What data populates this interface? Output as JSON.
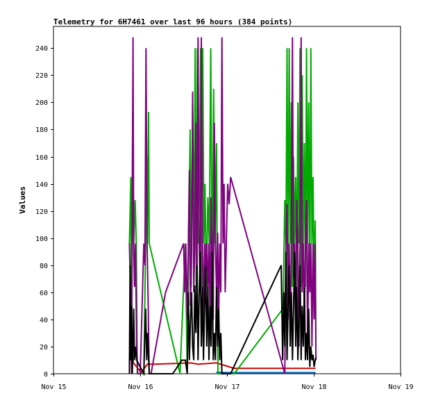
{
  "chart_data": {
    "type": "line",
    "title": "Telemetry for 6H7461 over last 96 hours (384 points)",
    "xlabel": "",
    "ylabel": "Values",
    "x_ticks": [
      "Nov 15",
      "Nov 16",
      "Nov 17",
      "Nov 18",
      "Nov 19"
    ],
    "x_tick_hours": [
      0,
      24,
      48,
      72,
      96
    ],
    "xlim_hours": [
      0,
      96
    ],
    "y_ticks": [
      0,
      20,
      40,
      60,
      80,
      100,
      120,
      140,
      160,
      180,
      200,
      220,
      240
    ],
    "ylim": [
      0,
      256
    ],
    "grid": false,
    "series": [
      {
        "color": "#0066b3",
        "points": [
          [
            45,
            1
          ],
          [
            50,
            0.8
          ],
          [
            60,
            0.8
          ],
          [
            64.5,
            0.8
          ],
          [
            70,
            0.8
          ],
          [
            72.5,
            0.8
          ]
        ]
      },
      {
        "color": "#cc0000",
        "points": [
          [
            21.0,
            8
          ],
          [
            21.7,
            24
          ],
          [
            22.1,
            8
          ],
          [
            24.3,
            1
          ],
          [
            26.0,
            7
          ],
          [
            28.0,
            7
          ],
          [
            38.0,
            8
          ],
          [
            40.0,
            7
          ],
          [
            45.0,
            8
          ],
          [
            50.0,
            4
          ],
          [
            60.0,
            4
          ],
          [
            64.0,
            4
          ],
          [
            70.0,
            4
          ],
          [
            72.5,
            4
          ]
        ]
      },
      {
        "color": "#00aa00",
        "points": [
          [
            21.0,
            96
          ],
          [
            21.4,
            145
          ],
          [
            21.6,
            0
          ],
          [
            21.9,
            193
          ],
          [
            22.2,
            96
          ],
          [
            22.6,
            128
          ],
          [
            22.9,
            96
          ],
          [
            23.2,
            0
          ],
          [
            25.0,
            0
          ],
          [
            25.5,
            96
          ],
          [
            25.8,
            160
          ],
          [
            26.0,
            96
          ],
          [
            26.3,
            193
          ],
          [
            26.5,
            96
          ],
          [
            35.0,
            0
          ],
          [
            36.5,
            96
          ],
          [
            37.0,
            0
          ],
          [
            37.8,
            180
          ],
          [
            38.1,
            64
          ],
          [
            38.5,
            200
          ],
          [
            38.9,
            96
          ],
          [
            39.2,
            240
          ],
          [
            39.5,
            64
          ],
          [
            39.8,
            240
          ],
          [
            40.1,
            96
          ],
          [
            40.4,
            140
          ],
          [
            40.7,
            240
          ],
          [
            41.0,
            64
          ],
          [
            41.3,
            240
          ],
          [
            41.6,
            96
          ],
          [
            41.9,
            140
          ],
          [
            42.3,
            64
          ],
          [
            42.7,
            130
          ],
          [
            43.1,
            96
          ],
          [
            43.5,
            240
          ],
          [
            43.9,
            64
          ],
          [
            44.3,
            210
          ],
          [
            44.7,
            96
          ],
          [
            45.1,
            170
          ],
          [
            45.5,
            0
          ],
          [
            50.0,
            0
          ],
          [
            63.5,
            48
          ],
          [
            64.0,
            128
          ],
          [
            64.3,
            96
          ],
          [
            64.6,
            240
          ],
          [
            64.9,
            64
          ],
          [
            65.2,
            240
          ],
          [
            65.5,
            96
          ],
          [
            65.8,
            200
          ],
          [
            66.1,
            64
          ],
          [
            66.4,
            160
          ],
          [
            66.7,
            96
          ],
          [
            67.0,
            145
          ],
          [
            67.3,
            64
          ],
          [
            67.6,
            200
          ],
          [
            67.9,
            96
          ],
          [
            68.2,
            240
          ],
          [
            68.5,
            64
          ],
          [
            68.8,
            220
          ],
          [
            69.1,
            96
          ],
          [
            69.4,
            170
          ],
          [
            69.7,
            64
          ],
          [
            70.0,
            240
          ],
          [
            70.3,
            96
          ],
          [
            70.6,
            200
          ],
          [
            70.9,
            64
          ],
          [
            71.2,
            240
          ],
          [
            71.5,
            96
          ],
          [
            71.8,
            145
          ],
          [
            72.1,
            64
          ],
          [
            72.4,
            113
          ],
          [
            72.6,
            10
          ]
        ]
      },
      {
        "color": "#800080",
        "points": [
          [
            21.0,
            96
          ],
          [
            21.3,
            64
          ],
          [
            21.6,
            0
          ],
          [
            22.0,
            248
          ],
          [
            22.2,
            96
          ],
          [
            22.4,
            64
          ],
          [
            22.7,
            96
          ],
          [
            23.0,
            20
          ],
          [
            23.3,
            0
          ],
          [
            24.0,
            0
          ],
          [
            25.0,
            96
          ],
          [
            25.3,
            80
          ],
          [
            25.6,
            240
          ],
          [
            25.9,
            96
          ],
          [
            26.2,
            50
          ],
          [
            26.5,
            0
          ],
          [
            27.0,
            0
          ],
          [
            31.0,
            60
          ],
          [
            36.0,
            96
          ],
          [
            36.3,
            60
          ],
          [
            36.6,
            96
          ],
          [
            37.0,
            40
          ],
          [
            37.3,
            96
          ],
          [
            37.6,
            150
          ],
          [
            37.9,
            50
          ],
          [
            38.2,
            90
          ],
          [
            38.5,
            208
          ],
          [
            38.8,
            60
          ],
          [
            39.1,
            96
          ],
          [
            39.4,
            185
          ],
          [
            39.7,
            50
          ],
          [
            40.0,
            248
          ],
          [
            40.3,
            96
          ],
          [
            40.6,
            60
          ],
          [
            40.9,
            248
          ],
          [
            41.2,
            96
          ],
          [
            41.5,
            40
          ],
          [
            41.8,
            96
          ],
          [
            42.1,
            72
          ],
          [
            42.4,
            96
          ],
          [
            42.7,
            60
          ],
          [
            43.0,
            96
          ],
          [
            43.3,
            40
          ],
          [
            43.6,
            130
          ],
          [
            43.9,
            96
          ],
          [
            44.2,
            40
          ],
          [
            44.5,
            185
          ],
          [
            44.8,
            96
          ],
          [
            45.1,
            60
          ],
          [
            45.4,
            104
          ],
          [
            45.7,
            40
          ],
          [
            46.0,
            96
          ],
          [
            46.3,
            60
          ],
          [
            46.6,
            248
          ],
          [
            46.9,
            96
          ],
          [
            47.2,
            140
          ],
          [
            47.5,
            60
          ],
          [
            47.8,
            96
          ],
          [
            48.2,
            140
          ],
          [
            48.6,
            125
          ],
          [
            49.0,
            145
          ],
          [
            64.0,
            0
          ],
          [
            64.3,
            96
          ],
          [
            64.6,
            125
          ],
          [
            64.9,
            40
          ],
          [
            65.2,
            96
          ],
          [
            65.5,
            20
          ],
          [
            65.8,
            96
          ],
          [
            66.1,
            248
          ],
          [
            66.4,
            70
          ],
          [
            66.7,
            96
          ],
          [
            67.0,
            40
          ],
          [
            67.3,
            128
          ],
          [
            67.6,
            96
          ],
          [
            67.9,
            20
          ],
          [
            68.2,
            96
          ],
          [
            68.5,
            248
          ],
          [
            68.8,
            60
          ],
          [
            69.1,
            96
          ],
          [
            69.4,
            40
          ],
          [
            69.7,
            96
          ],
          [
            70.0,
            128
          ],
          [
            70.3,
            20
          ],
          [
            70.6,
            96
          ],
          [
            70.9,
            60
          ],
          [
            71.2,
            96
          ],
          [
            71.5,
            20
          ],
          [
            71.8,
            96
          ],
          [
            72.1,
            40
          ],
          [
            72.4,
            96
          ],
          [
            72.6,
            10
          ]
        ]
      },
      {
        "color": "#000000",
        "points": [
          [
            21.0,
            0
          ],
          [
            21.2,
            80
          ],
          [
            21.4,
            10
          ],
          [
            21.6,
            50
          ],
          [
            21.8,
            0
          ],
          [
            22.0,
            20
          ],
          [
            22.2,
            48
          ],
          [
            22.4,
            10
          ],
          [
            22.7,
            20
          ],
          [
            23.0,
            10
          ],
          [
            25.0,
            0
          ],
          [
            25.5,
            48
          ],
          [
            25.8,
            10
          ],
          [
            26.0,
            30
          ],
          [
            26.5,
            0
          ],
          [
            33.0,
            0
          ],
          [
            35.5,
            10
          ],
          [
            36.5,
            10
          ],
          [
            37.0,
            0
          ],
          [
            37.3,
            60
          ],
          [
            37.6,
            10
          ],
          [
            37.9,
            40
          ],
          [
            38.2,
            60
          ],
          [
            38.5,
            20
          ],
          [
            38.8,
            10
          ],
          [
            39.1,
            65
          ],
          [
            39.4,
            30
          ],
          [
            39.7,
            80
          ],
          [
            40.0,
            10
          ],
          [
            40.3,
            60
          ],
          [
            40.6,
            90
          ],
          [
            40.9,
            20
          ],
          [
            41.2,
            64
          ],
          [
            41.5,
            10
          ],
          [
            41.8,
            48
          ],
          [
            42.1,
            80
          ],
          [
            42.4,
            20
          ],
          [
            42.7,
            64
          ],
          [
            43.0,
            10
          ],
          [
            43.3,
            50
          ],
          [
            43.6,
            20
          ],
          [
            43.9,
            90
          ],
          [
            44.2,
            10
          ],
          [
            44.5,
            30
          ],
          [
            44.8,
            10
          ],
          [
            45.1,
            64
          ],
          [
            45.4,
            20
          ],
          [
            45.7,
            48
          ],
          [
            46.0,
            10
          ],
          [
            46.3,
            30
          ],
          [
            46.6,
            0
          ],
          [
            48.5,
            0
          ],
          [
            49.0,
            0
          ],
          [
            63.0,
            80
          ],
          [
            63.4,
            10
          ],
          [
            63.7,
            60
          ],
          [
            64.0,
            20
          ],
          [
            64.3,
            90
          ],
          [
            64.6,
            10
          ],
          [
            64.9,
            50
          ],
          [
            65.2,
            80
          ],
          [
            65.5,
            20
          ],
          [
            65.8,
            60
          ],
          [
            66.1,
            10
          ],
          [
            66.4,
            48
          ],
          [
            66.7,
            90
          ],
          [
            67.0,
            20
          ],
          [
            67.3,
            64
          ],
          [
            67.6,
            10
          ],
          [
            67.9,
            40
          ],
          [
            68.2,
            80
          ],
          [
            68.5,
            10
          ],
          [
            68.8,
            50
          ],
          [
            69.1,
            20
          ],
          [
            69.4,
            64
          ],
          [
            69.7,
            10
          ],
          [
            70.0,
            30
          ],
          [
            70.3,
            10
          ],
          [
            70.6,
            48
          ],
          [
            70.9,
            5
          ],
          [
            71.2,
            20
          ],
          [
            71.5,
            10
          ],
          [
            71.8,
            14
          ],
          [
            72.1,
            5
          ],
          [
            72.4,
            10
          ],
          [
            72.6,
            12
          ]
        ]
      }
    ]
  }
}
